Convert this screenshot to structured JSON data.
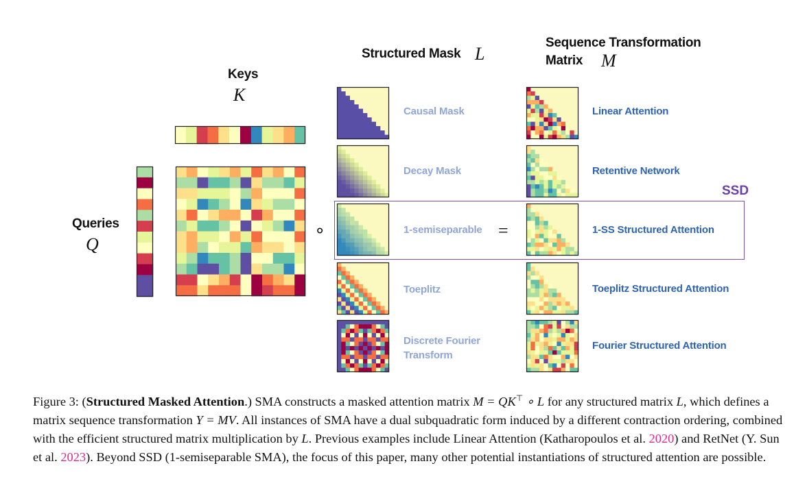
{
  "headers": {
    "keys_title": "Keys",
    "keys_symbol": "K",
    "queries_title": "Queries",
    "queries_symbol": "Q",
    "mask_title": "Structured Mask",
    "mask_symbol": "L",
    "seq_title_line1": "Sequence Transformation",
    "seq_title_line2": "Matrix",
    "seq_symbol": "M"
  },
  "operators": {
    "hadamard": "∘",
    "equals": "="
  },
  "ssd_label": "SSD",
  "masks": [
    {
      "label": "Causal Mask"
    },
    {
      "label": "Decay Mask"
    },
    {
      "label": "1-semiseparable"
    },
    {
      "label": "Toeplitz"
    },
    {
      "label_line1": "Discrete Fourier",
      "label_line2": "Transform"
    }
  ],
  "attentions": [
    {
      "label": "Linear Attention"
    },
    {
      "label": "Retentive Network"
    },
    {
      "label": "1-SS Structured Attention"
    },
    {
      "label": "Toeplitz Structured Attention"
    },
    {
      "label": "Fourier Structured Attention"
    }
  ],
  "caption": {
    "fig": "Figure 3: (",
    "title": "Structured Masked Attention",
    "t1": ".) SMA constructs a masked attention matrix ",
    "eq1": "M = QK",
    "eq1_sup": "⊤",
    "eq1b": " ∘ L",
    "t2": " for any structured matrix ",
    "L": "L",
    "t3": ", which defines a matrix sequence transformation ",
    "eq2": "Y = MV",
    "t4": ". All instances of SMA have a dual subquadratic form induced by a different contraction ordering, combined with the efficient structured matrix multiplication by ",
    "L2": "L",
    "t5": ". Previous examples include Linear Attention (Katharopoulos et al. ",
    "cite1": "2020",
    "t6": ") and RetNet (Y. Sun et al. ",
    "cite2": "2023",
    "t7": "). Beyond SSD (1-semiseparable SMA), the focus of this paper, many other potential instantiations of structured attention are possible."
  },
  "colors": {
    "cream": "#fbf8c0",
    "navy": "#5a4fa6",
    "ssd_purple": "#7a4fb0",
    "mask_label": "#8fa6d8",
    "att_label": "#2e63b2",
    "cite": "#e0288f"
  }
}
